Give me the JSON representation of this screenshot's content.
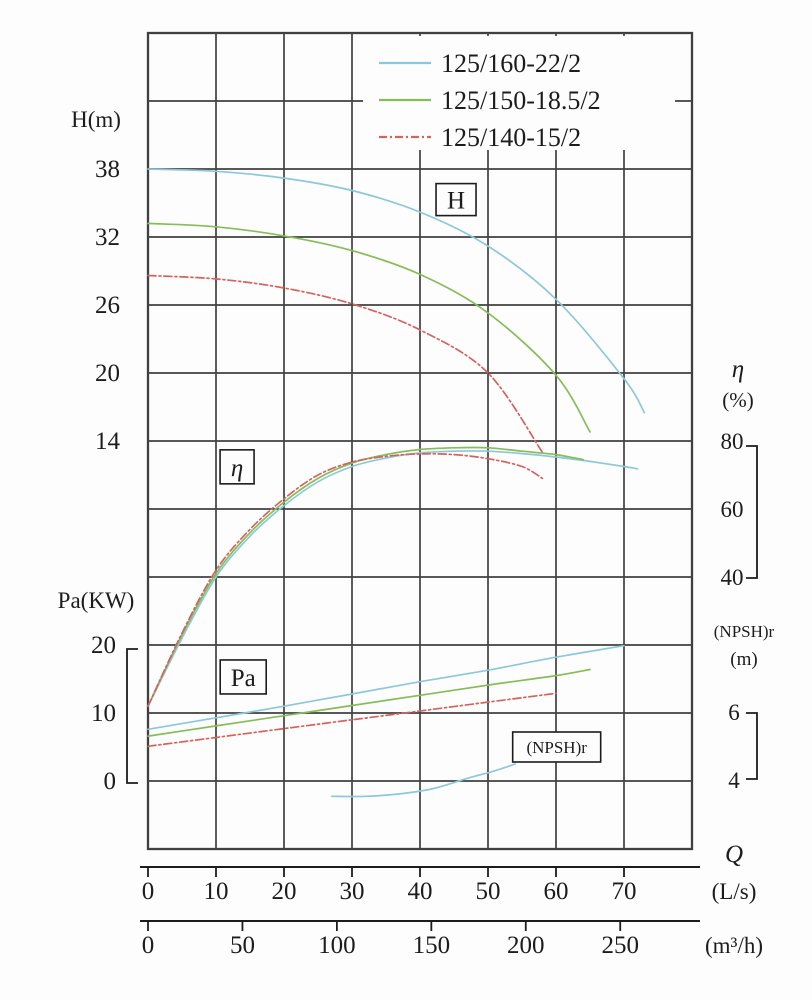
{
  "chart_data": {
    "type": "line",
    "description": "Pump performance curves: head H, efficiency η, power Pa and (NPSH)r versus flow Q for three pump models",
    "legend": [
      {
        "label": "125/160-22/2",
        "color": "#8cc8da",
        "dash": ""
      },
      {
        "label": "125/150-18.5/2",
        "color": "#86bd59",
        "dash": ""
      },
      {
        "label": "125/140-15/2",
        "color": "#d2645c",
        "dash": "8 3 2 3"
      }
    ],
    "axes": {
      "H": {
        "label": "H(m)",
        "ticks": [
          38,
          32,
          26,
          20,
          14
        ],
        "side": "left"
      },
      "Pa": {
        "label": "Pa(KW)",
        "ticks": [
          20,
          10,
          0
        ],
        "side": "left"
      },
      "eta": {
        "label": "η",
        "unit": "(%)",
        "ticks": [
          80,
          60,
          40
        ],
        "side": "right"
      },
      "npsh": {
        "label": "(NPSH)r",
        "unit": "(m)",
        "ticks": [
          6,
          4
        ],
        "side": "right"
      }
    },
    "x_axes": [
      {
        "label": "Q",
        "unit": "(L/s)",
        "ticks": [
          0,
          10,
          20,
          30,
          40,
          50,
          60,
          70
        ]
      },
      {
        "label": "",
        "unit": "(m³/h)",
        "ticks": [
          0,
          50,
          100,
          150,
          200,
          250
        ]
      }
    ],
    "x_range_ls": [
      0,
      80
    ],
    "grid": {
      "cols": 8,
      "rows": 12,
      "on": true
    },
    "series": [
      {
        "group": "H",
        "name": "125/160-22/2",
        "axis": "H",
        "color": "#8cc8da",
        "dash": "",
        "points": [
          [
            0,
            38
          ],
          [
            10,
            37.8
          ],
          [
            20,
            37.2
          ],
          [
            30,
            36.1
          ],
          [
            40,
            34.2
          ],
          [
            50,
            31.2
          ],
          [
            60,
            26.5
          ],
          [
            70,
            19.5
          ],
          [
            73,
            16.5
          ]
        ]
      },
      {
        "group": "H",
        "name": "125/150-18.5/2",
        "axis": "H",
        "color": "#86bd59",
        "dash": "",
        "points": [
          [
            0,
            33.2
          ],
          [
            10,
            32.9
          ],
          [
            20,
            32.1
          ],
          [
            30,
            30.8
          ],
          [
            40,
            28.7
          ],
          [
            50,
            25.3
          ],
          [
            60,
            19.8
          ],
          [
            65,
            14.8
          ]
        ]
      },
      {
        "group": "H",
        "name": "125/140-15/2",
        "axis": "H",
        "color": "#d2645c",
        "dash": "8 3 2 3",
        "points": [
          [
            0,
            28.6
          ],
          [
            10,
            28.3
          ],
          [
            20,
            27.5
          ],
          [
            30,
            26.1
          ],
          [
            40,
            23.8
          ],
          [
            50,
            20
          ],
          [
            58,
            13
          ]
        ]
      },
      {
        "group": "eta",
        "name": "125/160-22/2",
        "axis": "eta",
        "color": "#8cc8da",
        "dash": "",
        "points": [
          [
            0,
            2
          ],
          [
            5,
            22
          ],
          [
            10,
            40
          ],
          [
            15,
            52
          ],
          [
            20,
            61
          ],
          [
            25,
            68
          ],
          [
            30,
            72.5
          ],
          [
            35,
            75
          ],
          [
            40,
            76.5
          ],
          [
            45,
            77
          ],
          [
            50,
            77
          ],
          [
            55,
            76.3
          ],
          [
            60,
            75.3
          ],
          [
            65,
            74
          ],
          [
            70,
            72.5
          ],
          [
            72,
            71.8
          ]
        ]
      },
      {
        "group": "eta",
        "name": "125/150-18.5/2",
        "axis": "eta",
        "color": "#86bd59",
        "dash": "",
        "points": [
          [
            0,
            2
          ],
          [
            5,
            23
          ],
          [
            10,
            41
          ],
          [
            15,
            53
          ],
          [
            20,
            62
          ],
          [
            25,
            69
          ],
          [
            30,
            73.5
          ],
          [
            35,
            76
          ],
          [
            40,
            77.5
          ],
          [
            45,
            78
          ],
          [
            50,
            78
          ],
          [
            55,
            77
          ],
          [
            60,
            76
          ],
          [
            64,
            74.5
          ]
        ]
      },
      {
        "group": "eta",
        "name": "125/140-15/2",
        "axis": "eta",
        "color": "#d2645c",
        "dash": "8 3 2 3",
        "points": [
          [
            0,
            2
          ],
          [
            5,
            23.5
          ],
          [
            10,
            42
          ],
          [
            15,
            54
          ],
          [
            20,
            63
          ],
          [
            25,
            70
          ],
          [
            30,
            73.8
          ],
          [
            35,
            75.5
          ],
          [
            40,
            76.2
          ],
          [
            45,
            76
          ],
          [
            50,
            74.8
          ],
          [
            55,
            72.5
          ],
          [
            58,
            69
          ]
        ]
      },
      {
        "group": "Pa",
        "name": "125/160-22/2",
        "axis": "Pa",
        "color": "#8cc8da",
        "dash": "",
        "points": [
          [
            0,
            7.6
          ],
          [
            10,
            9.3
          ],
          [
            20,
            11
          ],
          [
            30,
            12.8
          ],
          [
            40,
            14.6
          ],
          [
            50,
            16.3
          ],
          [
            60,
            18.2
          ],
          [
            70,
            19.9
          ]
        ]
      },
      {
        "group": "Pa",
        "name": "125/150-18.5/2",
        "axis": "Pa",
        "color": "#86bd59",
        "dash": "",
        "points": [
          [
            0,
            6.6
          ],
          [
            10,
            8.1
          ],
          [
            20,
            9.6
          ],
          [
            30,
            11.1
          ],
          [
            40,
            12.6
          ],
          [
            50,
            14.1
          ],
          [
            60,
            15.5
          ],
          [
            65,
            16.4
          ]
        ]
      },
      {
        "group": "Pa",
        "name": "125/140-15/2",
        "axis": "Pa",
        "color": "#d2645c",
        "dash": "8 3 2 3",
        "points": [
          [
            0,
            5.1
          ],
          [
            10,
            6.4
          ],
          [
            20,
            7.7
          ],
          [
            30,
            9
          ],
          [
            40,
            10.3
          ],
          [
            50,
            11.6
          ],
          [
            60,
            12.9
          ]
        ]
      },
      {
        "group": "npsh",
        "name": "125/160-22/2",
        "axis": "npsh",
        "color": "#8cc8da",
        "dash": "",
        "points": [
          [
            27,
            3.55
          ],
          [
            32,
            3.55
          ],
          [
            37,
            3.62
          ],
          [
            42,
            3.78
          ],
          [
            47,
            4.08
          ],
          [
            51,
            4.3
          ],
          [
            54,
            4.5
          ]
        ]
      }
    ],
    "annotations": [
      {
        "text": "H",
        "q": 45.3,
        "axis": "H",
        "value": 35.3,
        "w": 40,
        "h": 32,
        "font": 25
      },
      {
        "text": "η",
        "q": 13.1,
        "axis": "eta",
        "value": 72.4,
        "w": 34,
        "h": 34,
        "font": 25
      },
      {
        "text": "Pa",
        "q": 14.0,
        "axis": "Pa",
        "value": 15.3,
        "w": 46,
        "h": 34,
        "font": 25
      },
      {
        "text": "(NPSH)r",
        "q": 60.1,
        "axis": "npsh",
        "value": 5.0,
        "w": 88,
        "h": 30,
        "font": 17
      }
    ],
    "colors": {
      "grid": "#404040",
      "text": "#1c1c1c"
    }
  }
}
